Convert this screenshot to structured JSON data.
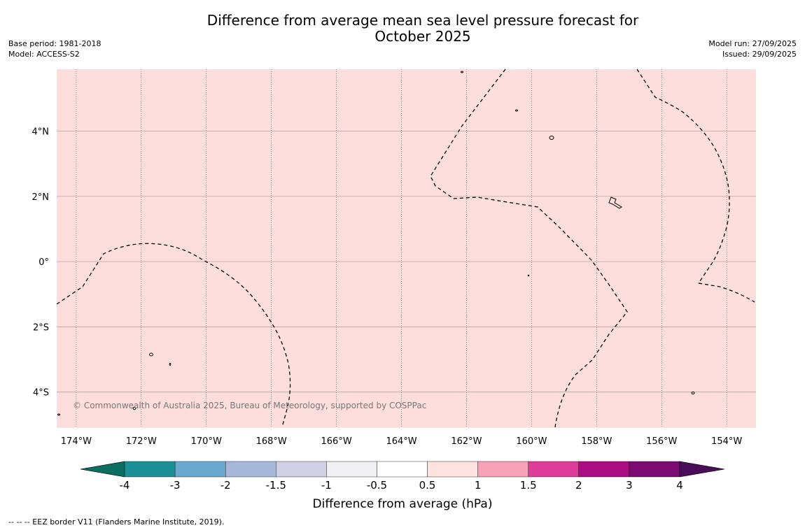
{
  "title": {
    "line1": "Difference from average mean sea level pressure forecast for",
    "line2": "October 2025"
  },
  "info": {
    "base_period": "Base period: 1981-2018",
    "model": "Model: ACCESS-S2",
    "model_run": "Model run: 27/09/2025",
    "issued": "Issued: 29/09/2025"
  },
  "map": {
    "fill_color": "#fddedd",
    "lat_labels": [
      "4°N",
      "2°N",
      "0°",
      "2°S",
      "4°S"
    ],
    "lat_values": [
      4,
      2,
      0,
      -2,
      -4
    ],
    "lon_labels": [
      "174°W",
      "172°W",
      "170°W",
      "168°W",
      "166°W",
      "164°W",
      "162°W",
      "160°W",
      "158°W",
      "156°W",
      "154°W"
    ],
    "lon_values": [
      -174,
      -172,
      -170,
      -168,
      -166,
      -164,
      -162,
      -160,
      -158,
      -156,
      -154
    ],
    "lon_range": [
      -174.6,
      -153.1
    ],
    "lat_range": [
      -5.1,
      5.9
    ],
    "copyright": "© Commonwealth of Australia 2025, Bureau of Meteorology, supported by COSPPac"
  },
  "colorbar": {
    "title": "Difference from average (hPa)",
    "tick_labels": [
      "-4",
      "-3",
      "-2",
      "-1.5",
      "-1",
      "-0.5",
      "0.5",
      "1",
      "1.5",
      "2",
      "3",
      "4"
    ],
    "low_extend_color": "#0b6e60",
    "high_extend_color": "#4a0d5a",
    "colors": [
      "#1c9097",
      "#6aa9cd",
      "#a5b8da",
      "#cfd0e5",
      "#f0eff3",
      "#ffffff",
      "#fde2e0",
      "#f7a0b7",
      "#dd3c98",
      "#ad0b83",
      "#7b0a73"
    ]
  },
  "footer": {
    "eez_note": "--  --  -- EEZ border V11 (Flanders Marine Institute, 2019)."
  }
}
